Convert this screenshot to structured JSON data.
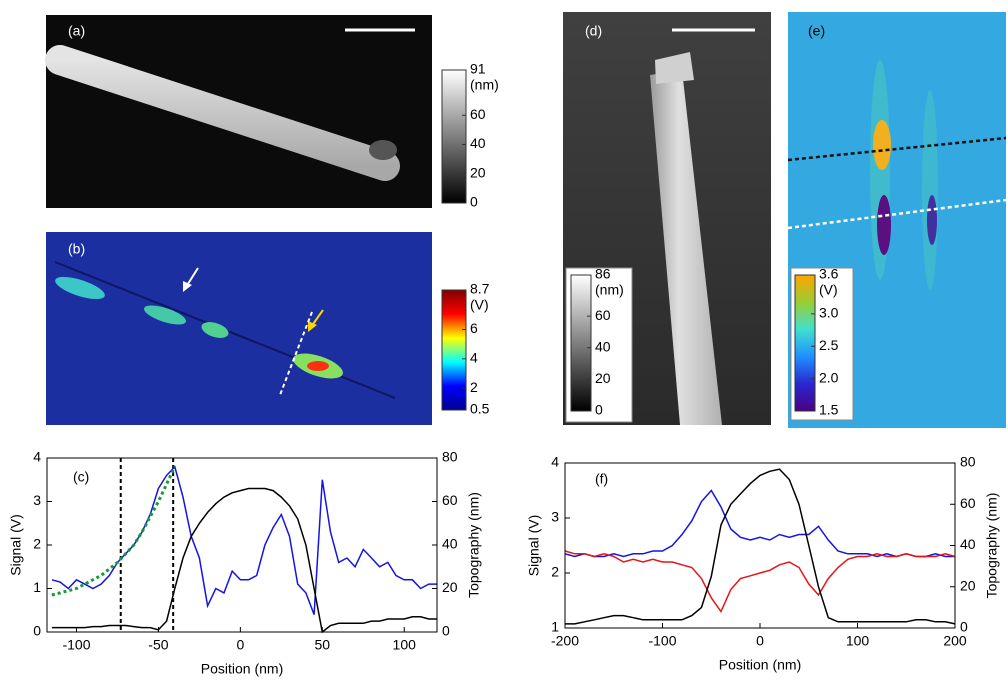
{
  "chart_data": [
    {
      "type": "image",
      "label": "(a)",
      "colorbar": {
        "unit": "(nm)",
        "lim": [
          0,
          91
        ],
        "ticks": [
          0,
          20,
          40,
          60,
          91
        ],
        "colormap": [
          "#000000",
          "#ffffff"
        ]
      }
    },
    {
      "type": "image",
      "label": "(b)",
      "colorbar": {
        "unit": "(V)",
        "lim": [
          0.5,
          8.7
        ],
        "ticks": [
          0.5,
          2,
          4,
          6,
          8.7
        ],
        "colormap": [
          "#00008f",
          "#0000ff",
          "#00ffff",
          "#ffff00",
          "#ff0000",
          "#800000"
        ]
      }
    },
    {
      "type": "line",
      "label": "(c)",
      "xlabel": "Position (nm)",
      "ylabel": "Signal (V)",
      "y2label": "Topography (nm)",
      "x": [
        -115,
        -110,
        -105,
        -100,
        -95,
        -90,
        -85,
        -80,
        -75,
        -70,
        -65,
        -60,
        -55,
        -50,
        -45,
        -40,
        -35,
        -30,
        -25,
        -20,
        -15,
        -10,
        -5,
        0,
        5,
        10,
        15,
        20,
        25,
        30,
        35,
        40,
        45,
        50,
        55,
        60,
        65,
        70,
        75,
        80,
        85,
        90,
        95,
        100,
        105,
        110,
        115,
        120
      ],
      "xlim": [
        -118,
        120
      ],
      "xticks": [
        -100,
        -50,
        0,
        50,
        100
      ],
      "ylim": [
        0,
        4
      ],
      "yticks": [
        0,
        1,
        2,
        3,
        4
      ],
      "y2lim": [
        0,
        80
      ],
      "y2ticks": [
        0,
        20,
        40,
        60,
        80
      ],
      "vlines": [
        -73,
        -41
      ],
      "series": [
        {
          "color": "#1414e6",
          "values": [
            1.2,
            1.15,
            1.0,
            1.2,
            1.1,
            1.0,
            1.1,
            1.3,
            1.6,
            1.8,
            2.0,
            2.3,
            2.7,
            3.3,
            3.6,
            3.8,
            3.1,
            2.2,
            1.7,
            0.6,
            1.0,
            0.9,
            1.4,
            1.2,
            1.2,
            1.3,
            2.0,
            2.4,
            2.7,
            2.2,
            1.1,
            0.9,
            0.4,
            3.5,
            2.3,
            1.6,
            1.7,
            1.5,
            1.9,
            1.7,
            1.5,
            1.6,
            1.3,
            1.2,
            1.2,
            1.0,
            1.1,
            1.1
          ]
        },
        {
          "color": "#000000",
          "axis": "y2",
          "values": [
            2,
            2,
            2,
            2,
            2,
            2.5,
            2.5,
            3,
            3,
            3,
            2.5,
            2,
            2,
            1,
            5,
            20,
            34,
            44,
            50,
            55,
            59,
            62,
            64,
            65,
            66,
            66,
            66,
            65,
            62,
            58,
            52,
            40,
            20,
            0,
            3,
            4,
            4,
            4,
            4,
            5,
            5,
            6,
            6,
            6,
            7,
            7,
            6,
            6
          ]
        },
        {
          "color": "#159a35",
          "style": "dotted",
          "values": [
            0.85,
            0.9,
            0.95,
            1.0,
            1.1,
            1.2,
            1.3,
            1.45,
            1.6,
            1.8,
            2.0,
            2.3,
            2.65,
            3.0,
            3.4,
            3.8,
            null,
            null,
            null,
            null,
            null,
            null,
            null,
            null,
            null,
            null,
            null,
            null,
            null,
            null,
            null,
            null,
            null,
            null,
            null,
            null,
            null,
            null,
            null,
            null,
            null,
            null,
            null,
            null,
            null,
            null,
            null,
            null
          ]
        }
      ]
    },
    {
      "type": "image",
      "label": "(d)",
      "colorbar": {
        "unit": "(nm)",
        "lim": [
          0,
          86
        ],
        "ticks": [
          0,
          20,
          40,
          60,
          86
        ],
        "colormap": [
          "#000000",
          "#ffffff"
        ]
      }
    },
    {
      "type": "image",
      "label": "(e)",
      "colorbar": {
        "unit": "(V)",
        "lim": [
          1.5,
          3.6
        ],
        "ticks": [
          1.5,
          {
            "value": 2,
            "label": "2.0"
          },
          2.5,
          {
            "value": 3,
            "label": "3.0"
          },
          3.6
        ],
        "colormap": [
          "#4b0082",
          "#2828d0",
          "#1e90ff",
          "#40e0d0",
          "#9acd32",
          "#ffa500"
        ]
      }
    },
    {
      "type": "line",
      "label": "(f)",
      "xlabel": "Position (nm)",
      "ylabel": "Signal (V)",
      "y2label": "Topography (nm)",
      "x": [
        -200,
        -190,
        -180,
        -170,
        -160,
        -150,
        -140,
        -130,
        -120,
        -110,
        -100,
        -90,
        -80,
        -70,
        -60,
        -50,
        -40,
        -30,
        -20,
        -10,
        0,
        10,
        20,
        30,
        40,
        50,
        60,
        70,
        80,
        90,
        100,
        110,
        120,
        130,
        140,
        150,
        160,
        170,
        180,
        190,
        200
      ],
      "xlim": [
        -200,
        200
      ],
      "xticks": [
        -200,
        -100,
        0,
        100,
        200
      ],
      "ylim": [
        1,
        4
      ],
      "yticks": [
        1,
        2,
        3,
        4
      ],
      "y2lim": [
        0,
        80
      ],
      "y2ticks": [
        0,
        20,
        40,
        60,
        80
      ],
      "series": [
        {
          "color": "#1414e6",
          "values": [
            2.35,
            2.3,
            2.35,
            2.3,
            2.3,
            2.35,
            2.3,
            2.35,
            2.35,
            2.4,
            2.4,
            2.5,
            2.7,
            2.95,
            3.3,
            3.5,
            3.2,
            2.8,
            2.65,
            2.6,
            2.65,
            2.6,
            2.7,
            2.65,
            2.7,
            2.7,
            2.85,
            2.6,
            2.4,
            2.35,
            2.35,
            2.35,
            2.3,
            2.35,
            2.3,
            2.35,
            2.3,
            2.3,
            2.35,
            2.3,
            2.3
          ]
        },
        {
          "color": "#e61414",
          "values": [
            2.4,
            2.35,
            2.35,
            2.3,
            2.35,
            2.3,
            2.2,
            2.25,
            2.2,
            2.25,
            2.2,
            2.2,
            2.15,
            2.1,
            1.9,
            1.55,
            1.3,
            1.7,
            1.9,
            1.95,
            2.0,
            2.05,
            2.15,
            2.2,
            2.1,
            1.8,
            1.6,
            1.9,
            2.1,
            2.25,
            2.3,
            2.3,
            2.35,
            2.3,
            2.3,
            2.35,
            2.3,
            2.3,
            2.3,
            2.35,
            2.3
          ]
        },
        {
          "color": "#000000",
          "axis": "y2",
          "values": [
            2,
            2,
            3,
            4,
            5,
            6,
            6,
            5,
            4,
            4,
            4,
            4,
            4,
            6,
            10,
            25,
            50,
            60,
            65,
            70,
            74,
            76,
            77,
            72,
            60,
            40,
            20,
            5,
            3,
            3,
            3,
            3,
            3,
            3,
            3,
            3,
            4,
            4,
            3,
            3,
            2
          ]
        }
      ]
    }
  ]
}
